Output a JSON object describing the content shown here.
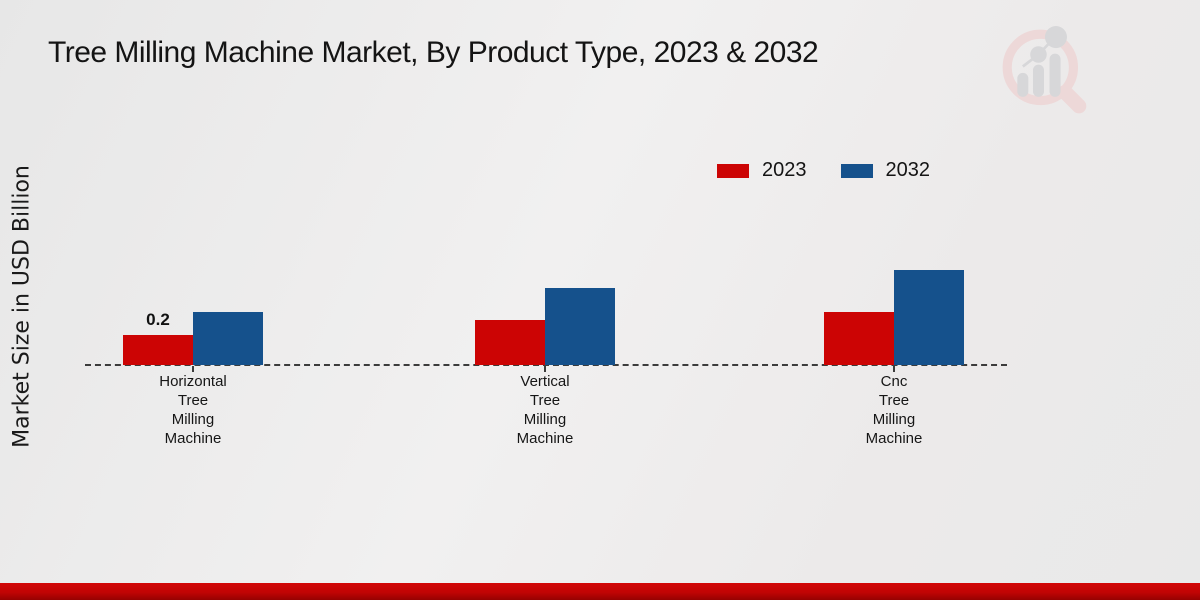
{
  "chart_data": {
    "type": "bar",
    "title": "Tree Milling Machine Market, By Product Type, 2023 & 2032",
    "ylabel": "Market Size in USD Billion",
    "xlabel": "",
    "categories": [
      "Horizontal Tree Milling Machine",
      "Vertical Tree Milling Machine",
      "Cnc Tree Milling Machine"
    ],
    "series": [
      {
        "name": "2023",
        "color": "#cc0404",
        "values": [
          0.2,
          0.3,
          0.35
        ],
        "labels": [
          "0.2",
          "",
          ""
        ]
      },
      {
        "name": "2032",
        "color": "#15518c",
        "values": [
          0.35,
          0.51,
          0.63
        ],
        "labels": [
          "",
          "",
          ""
        ]
      }
    ],
    "ylim": [
      0,
      0.7
    ],
    "grid": false,
    "legend_position": "top-right",
    "baseline_style": "dashed"
  },
  "branding": {
    "logo": "market-research-future-logo",
    "logo_ring_color": "#eed7d7",
    "logo_bars_color": "#d5d5d8",
    "footer_bar_color": "#c10404"
  }
}
